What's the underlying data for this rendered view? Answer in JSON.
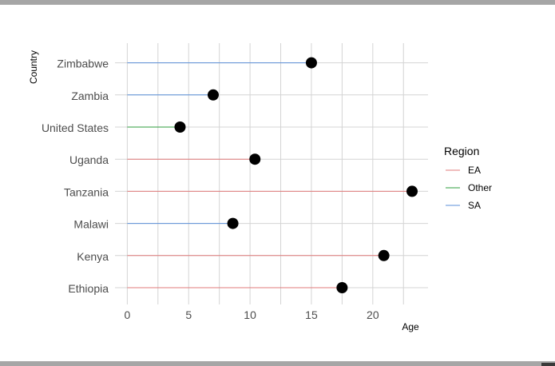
{
  "chart_data": {
    "type": "lollipop",
    "title": "",
    "xlabel": "Age",
    "ylabel": "Country",
    "xlim": [
      -1,
      24.5
    ],
    "xticks": [
      0,
      5,
      10,
      15,
      20
    ],
    "categories": [
      "Ethiopia",
      "Kenya",
      "Malawi",
      "Tanzania",
      "Uganda",
      "United States",
      "Zambia",
      "Zimbabwe"
    ],
    "values": [
      17.5,
      20.9,
      8.6,
      23.2,
      10.4,
      4.3,
      7.0,
      15.0
    ],
    "region": [
      "EA",
      "EA",
      "SA",
      "EA",
      "EA",
      "Other",
      "SA",
      "SA"
    ],
    "grid": true,
    "legend": {
      "title": "Region",
      "placement": "right",
      "entries": [
        {
          "name": "EA",
          "color": "#e07b7b"
        },
        {
          "name": "Other",
          "color": "#2e9c3e"
        },
        {
          "name": "SA",
          "color": "#5b8fd9"
        }
      ]
    }
  }
}
